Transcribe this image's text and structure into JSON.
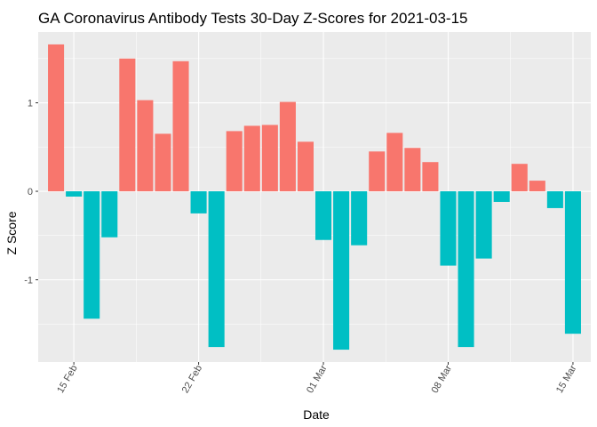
{
  "chart_data": {
    "type": "bar",
    "title": "GA Coronavirus Antibody Tests 30-Day Z-Scores for 2021-03-15",
    "xlabel": "Date",
    "ylabel": "Z Score",
    "x": [
      "2021-02-14",
      "2021-02-15",
      "2021-02-16",
      "2021-02-17",
      "2021-02-18",
      "2021-02-19",
      "2021-02-20",
      "2021-02-21",
      "2021-02-22",
      "2021-02-23",
      "2021-02-24",
      "2021-02-25",
      "2021-02-26",
      "2021-02-27",
      "2021-02-28",
      "2021-03-01",
      "2021-03-02",
      "2021-03-03",
      "2021-03-04",
      "2021-03-05",
      "2021-03-06",
      "2021-03-07",
      "2021-03-08",
      "2021-03-09",
      "2021-03-10",
      "2021-03-11",
      "2021-03-12",
      "2021-03-13",
      "2021-03-14",
      "2021-03-15"
    ],
    "values": [
      1.66,
      -0.06,
      -1.44,
      -0.52,
      1.5,
      1.03,
      0.65,
      1.47,
      -0.25,
      -1.76,
      0.68,
      0.74,
      0.75,
      1.01,
      0.56,
      -0.55,
      -1.79,
      -0.61,
      0.45,
      0.66,
      0.49,
      0.33,
      -0.84,
      -1.76,
      -0.76,
      -0.12,
      0.31,
      0.12,
      -0.19,
      -1.61
    ],
    "x_ticks": [
      {
        "date": "2021-02-15",
        "label": "15 Feb"
      },
      {
        "date": "2021-02-22",
        "label": "22 Feb"
      },
      {
        "date": "2021-03-01",
        "label": "01 Mar"
      },
      {
        "date": "2021-03-08",
        "label": "08 Mar"
      },
      {
        "date": "2021-03-15",
        "label": "15 Mar"
      }
    ],
    "y_ticks": [
      {
        "value": -1,
        "label": "-1"
      },
      {
        "value": 0,
        "label": "0"
      },
      {
        "value": 1,
        "label": "1"
      }
    ],
    "ylim": [
      -1.93,
      1.8
    ],
    "xlim": [
      "2021-02-13",
      "2021-03-16"
    ],
    "colors": {
      "positive": "#F8766D",
      "negative": "#00BFC4",
      "panel": "#EBEBEB",
      "grid": "#FFFFFF"
    },
    "grid": true,
    "legend": "none"
  }
}
